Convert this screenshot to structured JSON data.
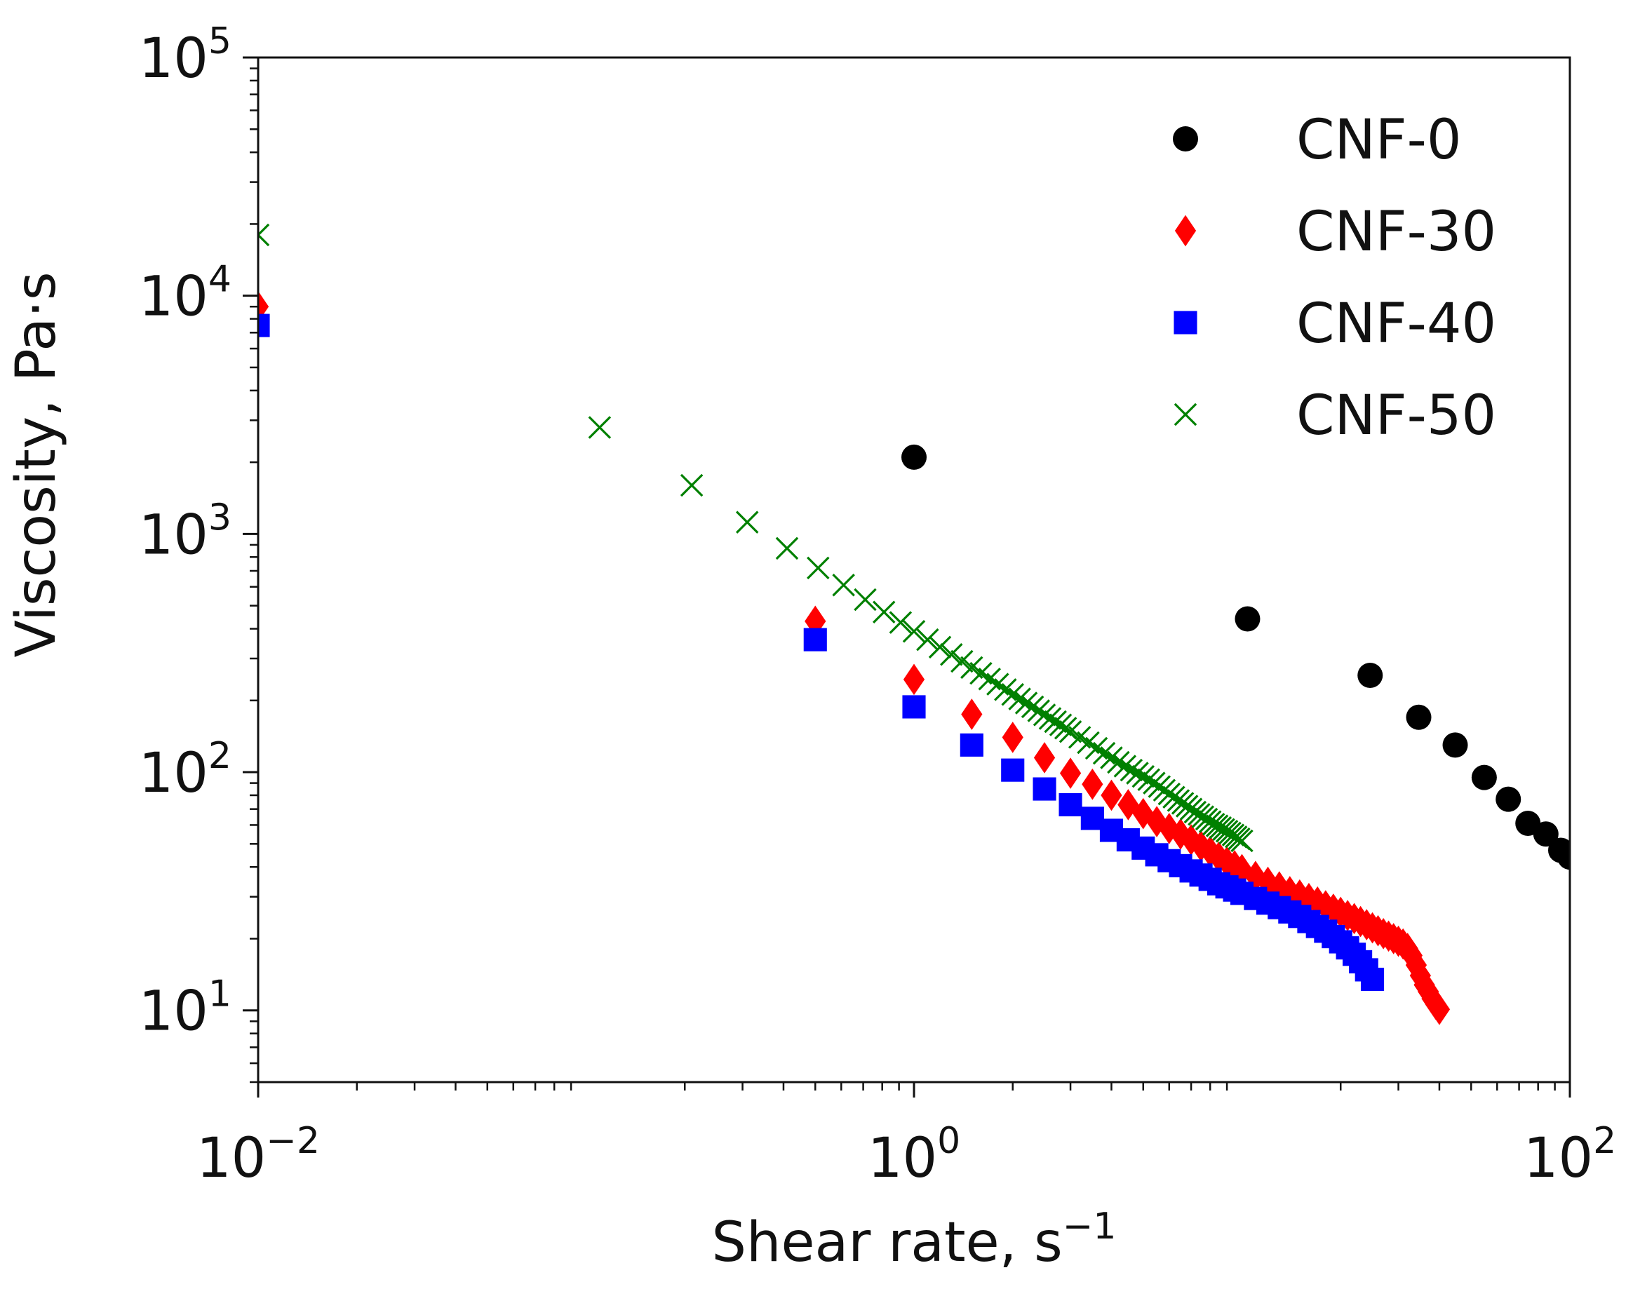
{
  "chart_data": {
    "type": "scatter",
    "title": "",
    "xlabel": "Shear rate, s",
    "xlabel_superscript": "−1",
    "ylabel": "Viscosity, Pa·s",
    "xscale": "log",
    "yscale": "log",
    "xlim": [
      0.01,
      100
    ],
    "ylim": [
      5,
      100000
    ],
    "legend_position": "top-right",
    "x_ticks": [
      {
        "value": 0.01,
        "base": "10",
        "exp": "−2"
      },
      {
        "value": 1,
        "base": "10",
        "exp": "0"
      },
      {
        "value": 100,
        "base": "10",
        "exp": "2"
      }
    ],
    "y_ticks": [
      {
        "value": 10,
        "base": "10",
        "exp": "1"
      },
      {
        "value": 100,
        "base": "10",
        "exp": "2"
      },
      {
        "value": 1000,
        "base": "10",
        "exp": "3"
      },
      {
        "value": 10000,
        "base": "10",
        "exp": "4"
      },
      {
        "value": 100000,
        "base": "10",
        "exp": "5"
      }
    ],
    "series": [
      {
        "name": "CNF-0",
        "marker": "circle",
        "color": "#000000",
        "x": [
          1.0,
          10.4,
          24.6,
          34.6,
          44.7,
          54.8,
          64.9,
          74.5,
          84.5,
          93.8,
          100
        ],
        "y": [
          2100,
          440,
          255,
          170,
          130,
          95,
          77,
          61,
          55,
          47,
          44
        ]
      },
      {
        "name": "CNF-30",
        "marker": "diamond",
        "color": "#ff0000",
        "x": [
          0.01,
          0.5,
          1.0,
          1.5,
          2.0,
          2.5,
          3.0,
          3.5,
          4.0,
          4.5,
          5.0,
          5.5,
          6.0,
          6.5,
          7.0,
          7.5,
          8.0,
          8.5,
          9.0,
          9.5,
          10.0,
          11,
          12,
          13,
          14,
          15,
          16,
          17,
          18,
          19,
          20,
          21,
          22,
          23,
          24,
          25,
          26,
          27,
          28,
          29,
          30,
          31,
          32,
          33,
          34,
          35,
          36,
          37,
          38,
          39,
          40
        ],
        "y": [
          9000,
          430,
          245,
          175,
          140,
          115,
          99,
          89,
          80,
          73,
          67,
          62,
          58,
          55,
          52,
          49,
          46.5,
          44,
          42,
          40.5,
          39,
          36.5,
          34.5,
          33,
          31.5,
          30.5,
          29.5,
          28.5,
          27.5,
          26.6,
          25.8,
          25,
          24.3,
          23.6,
          22.9,
          22.2,
          21.6,
          21,
          20.5,
          20,
          19.5,
          19,
          18.2,
          17,
          15.5,
          14,
          12.8,
          12,
          11.2,
          10.6,
          10.1
        ]
      },
      {
        "name": "CNF-40",
        "marker": "square",
        "color": "#0000ff",
        "x": [
          0.01,
          0.5,
          1.0,
          1.5,
          2.0,
          2.5,
          3.0,
          3.5,
          4.0,
          4.5,
          5.0,
          5.5,
          6.0,
          6.5,
          7.0,
          7.5,
          8.0,
          8.5,
          9.0,
          9.5,
          10.0,
          11,
          12,
          13,
          14,
          15,
          16,
          17,
          18,
          19,
          20,
          21,
          22,
          23,
          24,
          25
        ],
        "y": [
          7500,
          360,
          188,
          130,
          102,
          85,
          73,
          64,
          57,
          52,
          48,
          45,
          42.5,
          40.5,
          38.5,
          37,
          35.5,
          34,
          33,
          32,
          31,
          29.5,
          28.2,
          27,
          25.9,
          24.8,
          23.6,
          22.5,
          21.5,
          20.4,
          19.4,
          18.3,
          17.2,
          16,
          14.8,
          13.5
        ]
      },
      {
        "name": "CNF-50",
        "marker": "x",
        "color": "#008000",
        "x": [
          0.01,
          0.11,
          0.21,
          0.31,
          0.41,
          0.51,
          0.61,
          0.71,
          0.81,
          0.91,
          1.0,
          1.1,
          1.2,
          1.3,
          1.4,
          1.5,
          1.6,
          1.7,
          1.8,
          1.9,
          2.0,
          2.1,
          2.2,
          2.3,
          2.4,
          2.5,
          2.6,
          2.7,
          2.8,
          2.9,
          3.0,
          3.2,
          3.4,
          3.6,
          3.8,
          4.0,
          4.2,
          4.4,
          4.6,
          4.8,
          5.0,
          5.2,
          5.4,
          5.6,
          5.8,
          6.0,
          6.2,
          6.4,
          6.6,
          6.8,
          7.0,
          7.2,
          7.4,
          7.6,
          7.8,
          8.0,
          8.2,
          8.4,
          8.6,
          8.8,
          9.0,
          9.2,
          9.4,
          9.6,
          9.8,
          10.0
        ],
        "y": [
          18000,
          2800,
          1600,
          1120,
          870,
          720,
          610,
          530,
          470,
          425,
          390,
          360,
          335,
          312,
          292,
          275,
          260,
          246,
          234,
          222,
          212,
          203,
          195,
          188,
          181,
          174,
          168,
          163,
          158,
          153,
          148,
          140,
          133,
          126,
          120,
          115,
          110,
          106,
          102,
          99,
          96,
          93,
          90,
          87,
          84,
          81,
          78.5,
          76,
          74,
          72,
          70,
          68,
          66.5,
          65,
          63.5,
          62,
          60.5,
          59.5,
          58.5,
          57.5,
          56.5,
          55.5,
          54.5,
          53.5,
          52.5,
          51.5
        ]
      }
    ]
  }
}
